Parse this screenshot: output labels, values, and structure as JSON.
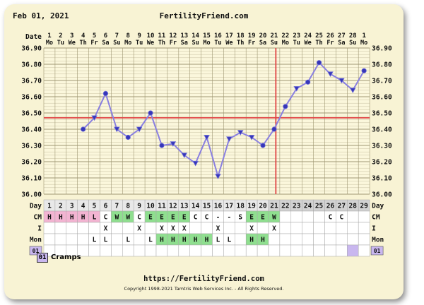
{
  "header": {
    "date": "Feb 01, 2021",
    "site": "FertilityFriend.com"
  },
  "footer": {
    "url": "https://FertilityFriend.com",
    "copyright": "Copyright 1998-2021 Tamtris Web Services Inc. - All Rights Reserved."
  },
  "legend": {
    "code": "01",
    "label": "Cramps"
  },
  "row_labels": {
    "date": "Date",
    "day": "Day",
    "cm": "CM",
    "i": "I",
    "mon": "Mon",
    "notes": "01"
  },
  "colors": {
    "temp_line": "#8a80e0",
    "marker_fill": "#3636b8",
    "coverline": "#e04545",
    "grid_minor": "#c9c1a2",
    "grid_major": "#9f9773",
    "green": "#8fdf8f",
    "pink": "#f3b4d2",
    "purple": "#c9b7ef"
  },
  "chart_data": {
    "type": "line",
    "title": "",
    "dates": [
      "1",
      "2",
      "3",
      "4",
      "5",
      "6",
      "7",
      "8",
      "9",
      "10",
      "11",
      "12",
      "13",
      "14",
      "15",
      "16",
      "17",
      "18",
      "19",
      "20",
      "21",
      "22",
      "23",
      "24",
      "25",
      "26",
      "27",
      "28",
      "1"
    ],
    "weekdays": [
      "Mo",
      "Tu",
      "We",
      "Th",
      "Fr",
      "Sa",
      "Su",
      "Mo",
      "Tu",
      "We",
      "Th",
      "Fr",
      "Sa",
      "Su",
      "Mo",
      "Tu",
      "We",
      "Th",
      "Fr",
      "Sa",
      "Su",
      "Mo",
      "Tu",
      "We",
      "Th",
      "Fr",
      "Sa",
      "Su",
      "Mo"
    ],
    "cycle_days": [
      "1",
      "2",
      "3",
      "4",
      "5",
      "6",
      "7",
      "8",
      "9",
      "10",
      "11",
      "12",
      "13",
      "14",
      "15",
      "16",
      "17",
      "18",
      "19",
      "20",
      "21",
      "22",
      "23",
      "24",
      "25",
      "26",
      "27",
      "28",
      "29"
    ],
    "ylim": [
      36.0,
      36.9
    ],
    "y_ticks": [
      "36.00",
      "36.10",
      "36.20",
      "36.30",
      "36.40",
      "36.50",
      "36.60",
      "36.70",
      "36.80",
      "36.90"
    ],
    "temperatures": [
      null,
      null,
      null,
      36.4,
      36.47,
      36.62,
      36.4,
      36.35,
      36.4,
      36.5,
      36.3,
      36.31,
      36.24,
      36.19,
      36.35,
      36.11,
      36.34,
      36.38,
      36.35,
      36.3,
      36.4,
      36.54,
      36.65,
      36.69,
      36.81,
      36.74,
      36.7,
      36.64,
      36.76
    ],
    "markers": [
      "",
      "",
      "",
      "circle",
      "down",
      "circle",
      "down",
      "circle",
      "down",
      "circle",
      "circle",
      "down",
      "down",
      "down",
      "down",
      "down",
      "down",
      "down",
      "down",
      "circle",
      "circle",
      "circle",
      "down",
      "circle",
      "circle",
      "down",
      "down",
      "down",
      "circle"
    ],
    "coverline": 36.47,
    "ovulation_day": "21",
    "cm": [
      "H",
      "H",
      "H",
      "H",
      "L",
      "C",
      "W",
      "W",
      "C",
      "E",
      "E",
      "E",
      "E",
      "C",
      "C",
      "-",
      "-",
      "S",
      "E",
      "E",
      "W",
      "",
      "",
      "",
      "",
      "C",
      "C",
      "",
      ""
    ],
    "intercourse": [
      "",
      "",
      "",
      "",
      "",
      "X",
      "",
      "",
      "X",
      "",
      "X",
      "X",
      "X",
      "",
      "",
      "X",
      "",
      "",
      "X",
      "",
      "X",
      "",
      "",
      "",
      "",
      "",
      "",
      "",
      ""
    ],
    "monitor": [
      "",
      "",
      "",
      "",
      "L",
      "L",
      "",
      "L",
      "",
      "L",
      "H",
      "H",
      "H",
      "H",
      "H",
      "L",
      "L",
      "",
      "H",
      "H",
      "",
      "",
      "",
      "",
      "",
      "",
      "",
      "",
      ""
    ],
    "notes": [
      "",
      "",
      "",
      "",
      "",
      "",
      "",
      "",
      "",
      "",
      "",
      "",
      "",
      "",
      "",
      "",
      "",
      "",
      "",
      "",
      "",
      "",
      "",
      "",
      "",
      "",
      "",
      "01",
      ""
    ]
  }
}
